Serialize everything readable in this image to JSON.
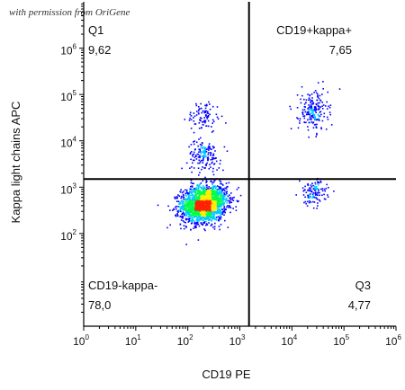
{
  "watermark": "with permission from OriGene",
  "chart_data": {
    "type": "scatter",
    "subtype": "flow-cytometry-density-plot",
    "xlabel": "CD19 PE",
    "ylabel": "Kappa light chains APC",
    "x_scale": "log",
    "y_scale": "log",
    "xlim": [
      1,
      1000000
    ],
    "ylim": [
      1,
      10000000
    ],
    "x_tick_labels": [
      {
        "base": "10",
        "exp": "0"
      },
      {
        "base": "10",
        "exp": "1"
      },
      {
        "base": "10",
        "exp": "2"
      },
      {
        "base": "10",
        "exp": "3"
      },
      {
        "base": "10",
        "exp": "4"
      },
      {
        "base": "10",
        "exp": "5"
      },
      {
        "base": "10",
        "exp": "6"
      }
    ],
    "y_tick_labels": [
      {
        "base": "10",
        "exp": "2"
      },
      {
        "base": "10",
        "exp": "3"
      },
      {
        "base": "10",
        "exp": "4"
      },
      {
        "base": "10",
        "exp": "5"
      },
      {
        "base": "10",
        "exp": "6"
      }
    ],
    "gate": {
      "x_threshold": 1500,
      "y_threshold": 1500
    },
    "quadrants": [
      {
        "name": "Q1",
        "value": "9,62",
        "position": "top-left"
      },
      {
        "name": "CD19+kappa+",
        "value": "7,65",
        "position": "top-right"
      },
      {
        "name": "CD19-kappa-",
        "value": "78,0",
        "position": "bottom-left"
      },
      {
        "name": "Q3",
        "value": "4,77",
        "position": "bottom-right"
      }
    ],
    "populations": [
      {
        "name": "CD19- kappa-",
        "center_x": 200,
        "center_y": 450,
        "weight": 0.78,
        "color_scale": "density"
      },
      {
        "name": "CD19- kappa+ (mid)",
        "center_x": 200,
        "center_y": 5000,
        "weight": 0.06,
        "color_scale": "density"
      },
      {
        "name": "CD19- kappa+ (high)",
        "center_x": 200,
        "center_y": 35000,
        "weight": 0.035,
        "color_scale": "density"
      },
      {
        "name": "CD19+ kappa+",
        "center_x": 25000,
        "center_y": 45000,
        "weight": 0.0765,
        "color_scale": "density"
      },
      {
        "name": "CD19+ kappa-",
        "center_x": 25000,
        "center_y": 800,
        "weight": 0.0477,
        "color_scale": "density"
      }
    ],
    "grid": false,
    "legend": "none",
    "colors": {
      "sparse": "#0000ff",
      "medium": "#00c8ff",
      "dense": "#00ff44",
      "denser": "#ffee00",
      "densest": "#ff2200",
      "gate_line": "#000000",
      "axis": "#000000"
    }
  }
}
